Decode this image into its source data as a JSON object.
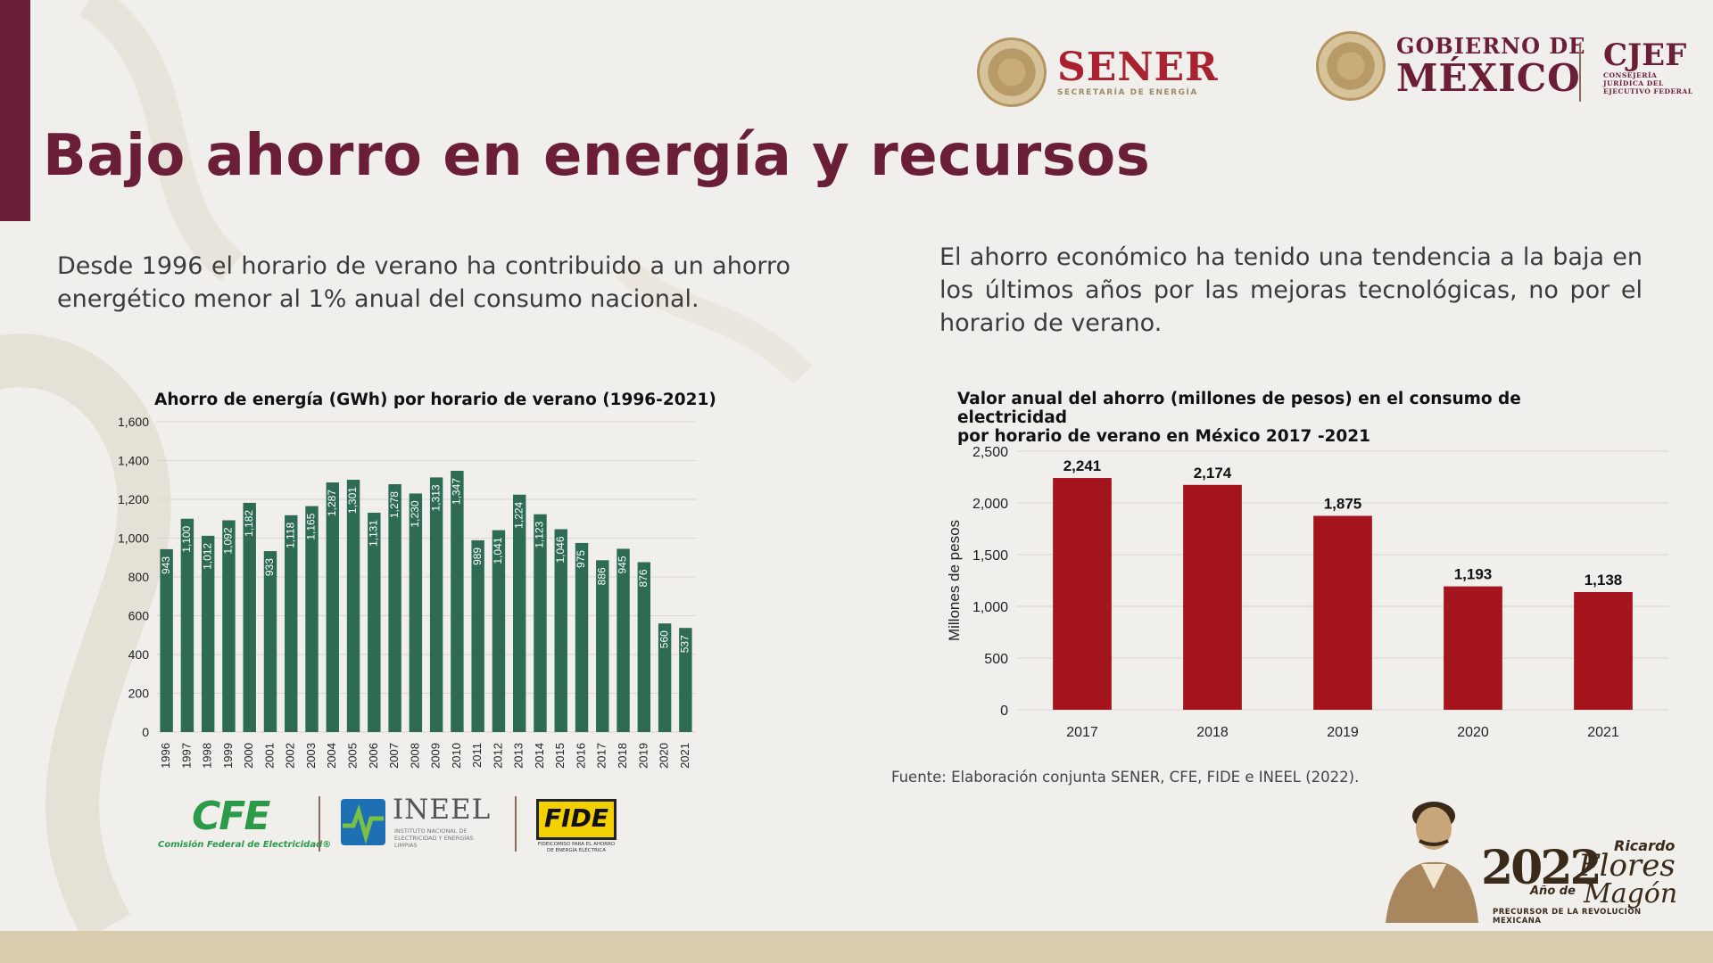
{
  "header": {
    "sener": {
      "word": "SENER",
      "subtitle": "SECRETARÍA DE ENERGÍA"
    },
    "gobierno": {
      "line1": "GOBIERNO DE",
      "line2": "MÉXICO"
    },
    "cjef": {
      "word": "CJEF",
      "subtitle": [
        "CONSEJERÍA",
        "JURÍDICA DEL",
        "EJECUTIVO FEDERAL"
      ]
    }
  },
  "title": "Bajo ahorro en energía y recursos",
  "paragraphs": {
    "left": "Desde 1996 el horario de verano ha contribuido a un ahorro energético menor al 1% anual del consumo nacional.",
    "right": "El ahorro económico ha tenido una tendencia a la baja en los últimos años por las mejoras tecnológicas, no por el horario de verano."
  },
  "chart_data": [
    {
      "type": "bar",
      "title": "Ahorro de energía (GWh) por horario de verano (1996-2021)",
      "xlabel": "",
      "ylabel": "",
      "categories": [
        "1996",
        "1997",
        "1998",
        "1999",
        "2000",
        "2001",
        "2002",
        "2003",
        "2004",
        "2005",
        "2006",
        "2007",
        "2008",
        "2009",
        "2010",
        "2011",
        "2012",
        "2013",
        "2014",
        "2015",
        "2016",
        "2017",
        "2018",
        "2019",
        "2020",
        "2021"
      ],
      "values": [
        943,
        1100,
        1012,
        1092,
        1182,
        933,
        1118,
        1165,
        1287,
        1301,
        1131,
        1278,
        1230,
        1313,
        1347,
        989,
        1041,
        1224,
        1123,
        1046,
        975,
        886,
        945,
        876,
        560,
        537
      ],
      "value_labels": [
        "943",
        "1,100",
        "1,012",
        "1,092",
        "1,182",
        "933",
        "1,118",
        "1,165",
        "1,287",
        "1,301",
        "1,131",
        "1,278",
        "1,230",
        "1,313",
        "1,347",
        "989",
        "1,041",
        "1,224",
        "1,123",
        "1,046",
        "975",
        "886",
        "945",
        "876",
        "560",
        "537"
      ],
      "yticks": [
        "0",
        "200",
        "400",
        "600",
        "800",
        "1,000",
        "1,200",
        "1,400",
        "1,600"
      ],
      "ylim": [
        0,
        1600
      ],
      "grid": true,
      "color": "#2d6b52"
    },
    {
      "type": "bar",
      "title": "Valor anual del ahorro (millones de pesos) en el consumo de electricidad por horario de verano en México 2017 -2021",
      "title_lines": [
        "Valor anual del ahorro (millones de pesos) en el consumo de electricidad",
        "por horario de verano en México 2017 -2021"
      ],
      "xlabel": "",
      "ylabel": "Millones de pesos",
      "categories": [
        "2017",
        "2018",
        "2019",
        "2020",
        "2021"
      ],
      "values": [
        2241,
        2174,
        1875,
        1193,
        1138
      ],
      "value_labels": [
        "2,241",
        "2,174",
        "1,875",
        "1,193",
        "1,138"
      ],
      "yticks": [
        "0",
        "500",
        "1,000",
        "1,500",
        "2,000",
        "2,500"
      ],
      "ylim": [
        0,
        2500
      ],
      "grid": true,
      "color": "#a3141c"
    }
  ],
  "source": "Fuente: Elaboración conjunta SENER, CFE, FIDE e INEEL (2022).",
  "partners": {
    "cfe": {
      "word": "CFE",
      "subtitle": "Comisión Federal de Electricidad®"
    },
    "ineel": {
      "word": "INEEL",
      "subtitle": "INSTITUTO NACIONAL DE ELECTRICIDAD Y ENERGÍAS LIMPIAS"
    },
    "fide": {
      "word": "FIDE",
      "subtitle": "FIDEICOMISO PARA EL AHORRO DE ENERGÍA ELÉCTRICA"
    }
  },
  "year_logo": {
    "year": "2022",
    "ano_de": "Año de",
    "ricardo": "Ricardo",
    "flores": "Flores",
    "magon": "Magón",
    "precursor": "PRECURSOR DE LA REVOLUCIÓN MEXICANA"
  }
}
